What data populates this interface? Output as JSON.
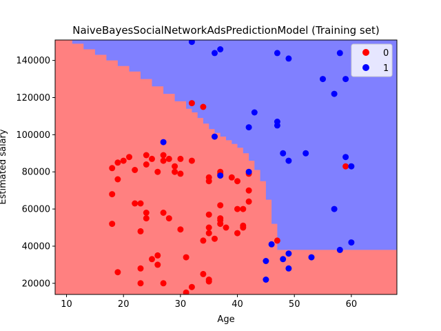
{
  "chart_data": {
    "type": "scatter",
    "title": "NaiveBayesSocialNetworkAdsPredictionModel (Training set)",
    "xlabel": "Age",
    "ylabel": "Estimated salary",
    "xlim": [
      8,
      68
    ],
    "ylim": [
      14000,
      151000
    ],
    "xticks": [
      10,
      20,
      30,
      40,
      50,
      60
    ],
    "yticks": [
      20000,
      40000,
      60000,
      80000,
      100000,
      120000,
      140000
    ],
    "grid": false,
    "legend_position": "top-right",
    "colors": {
      "class_0_region": "#ff8080",
      "class_1_region": "#8080ff",
      "class_0_point": "#ff0000",
      "class_1_point": "#0000ff"
    },
    "decision_boundary": {
      "label": "",
      "x": [
        8,
        9,
        11,
        13,
        15,
        17,
        19,
        21,
        23,
        25,
        27,
        29,
        31,
        32,
        33,
        34,
        35,
        36,
        37,
        38,
        39,
        40,
        41,
        42,
        43,
        44,
        45,
        46,
        47,
        68
      ],
      "y": [
        151000,
        151000,
        149000,
        146000,
        143000,
        140000,
        137000,
        134000,
        130000,
        126000,
        122000,
        118000,
        114000,
        112000,
        109000,
        106000,
        103000,
        101000,
        99000,
        97000,
        95000,
        93000,
        90000,
        86000,
        81000,
        75000,
        65000,
        52000,
        38000,
        14000
      ]
    },
    "series": [
      {
        "name": "0",
        "points": [
          [
            18,
            82000
          ],
          [
            19,
            85000
          ],
          [
            20,
            86000
          ],
          [
            21,
            88000
          ],
          [
            22,
            81000
          ],
          [
            24,
            84000
          ],
          [
            24,
            89000
          ],
          [
            25,
            87000
          ],
          [
            26,
            80000
          ],
          [
            27,
            89000
          ],
          [
            27,
            86000
          ],
          [
            28,
            87000
          ],
          [
            29,
            83000
          ],
          [
            29,
            80000
          ],
          [
            30,
            87000
          ],
          [
            30,
            79000
          ],
          [
            32,
            86000
          ],
          [
            32,
            117000
          ],
          [
            34,
            115000
          ],
          [
            18,
            68000
          ],
          [
            19,
            76000
          ],
          [
            22,
            63000
          ],
          [
            23,
            63000
          ],
          [
            24,
            58000
          ],
          [
            24,
            55000
          ],
          [
            27,
            58000
          ],
          [
            28,
            55000
          ],
          [
            30,
            49000
          ],
          [
            18,
            52000
          ],
          [
            23,
            48000
          ],
          [
            26,
            35000
          ],
          [
            25,
            33000
          ],
          [
            26,
            30000
          ],
          [
            31,
            34000
          ],
          [
            19,
            26000
          ],
          [
            23,
            28000
          ],
          [
            27,
            20000
          ],
          [
            23,
            20000
          ],
          [
            32,
            18000
          ],
          [
            31,
            15000
          ],
          [
            34,
            25000
          ],
          [
            35,
            22000
          ],
          [
            35,
            21000
          ],
          [
            34,
            43000
          ],
          [
            35,
            47000
          ],
          [
            35,
            50000
          ],
          [
            35,
            57000
          ],
          [
            36,
            44000
          ],
          [
            37,
            52000
          ],
          [
            37,
            54000
          ],
          [
            37,
            55000
          ],
          [
            38,
            50000
          ],
          [
            37,
            62000
          ],
          [
            35,
            75000
          ],
          [
            35,
            77000
          ],
          [
            37,
            79000
          ],
          [
            37,
            80000
          ],
          [
            39,
            77000
          ],
          [
            40,
            75000
          ],
          [
            40,
            60000
          ],
          [
            40,
            47000
          ],
          [
            41,
            50000
          ],
          [
            41,
            51000
          ],
          [
            41,
            60000
          ],
          [
            42,
            64000
          ],
          [
            42,
            70000
          ],
          [
            42,
            79000
          ],
          [
            47,
            43000
          ],
          [
            59,
            83000
          ]
        ]
      },
      {
        "name": "1",
        "points": [
          [
            32,
            150000
          ],
          [
            36,
            144000
          ],
          [
            37,
            146000
          ],
          [
            47,
            144000
          ],
          [
            49,
            141000
          ],
          [
            58,
            144000
          ],
          [
            55,
            130000
          ],
          [
            59,
            130000
          ],
          [
            57,
            122000
          ],
          [
            43,
            112000
          ],
          [
            42,
            104000
          ],
          [
            47,
            107000
          ],
          [
            47,
            105000
          ],
          [
            36,
            99000
          ],
          [
            27,
            96000
          ],
          [
            48,
            90000
          ],
          [
            52,
            90000
          ],
          [
            49,
            86000
          ],
          [
            59,
            88000
          ],
          [
            60,
            83000
          ],
          [
            42,
            80000
          ],
          [
            37,
            78000
          ],
          [
            57,
            60000
          ],
          [
            46,
            41000
          ],
          [
            58,
            38000
          ],
          [
            60,
            42000
          ],
          [
            48,
            33000
          ],
          [
            49,
            36000
          ],
          [
            45,
            32000
          ],
          [
            53,
            34000
          ],
          [
            49,
            28000
          ],
          [
            45,
            22000
          ]
        ]
      }
    ]
  }
}
